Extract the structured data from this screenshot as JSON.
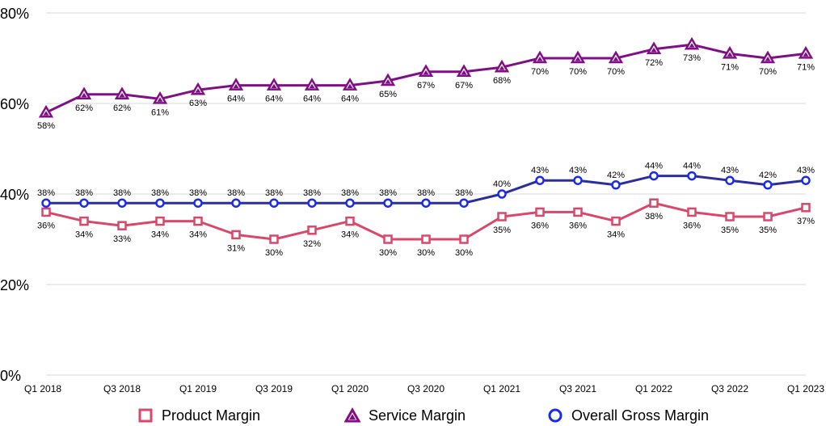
{
  "chart_data": {
    "type": "line",
    "title": "",
    "xlabel": "",
    "ylabel": "",
    "ylim": [
      0,
      80
    ],
    "y_ticks": [
      "0%",
      "20%",
      "40%",
      "60%",
      "80%"
    ],
    "grid": "horizontal",
    "legend_position": "bottom",
    "x": [
      "Q1 2018",
      "Q2 2018",
      "Q3 2018",
      "Q4 2018",
      "Q1 2019",
      "Q2 2019",
      "Q3 2019",
      "Q4 2019",
      "Q1 2020",
      "Q2 2020",
      "Q3 2020",
      "Q4 2020",
      "Q1 2021",
      "Q2 2021",
      "Q3 2021",
      "Q4 2021",
      "Q1 2022",
      "Q2 2022",
      "Q3 2022",
      "Q4 2022",
      "Q1 2023"
    ],
    "x_tick_labels": [
      "Q1 2018",
      "Q3 2018",
      "Q1 2019",
      "Q3 2019",
      "Q1 2020",
      "Q3 2020",
      "Q1 2021",
      "Q3 2021",
      "Q1 2022",
      "Q3 2022",
      "Q1 2023"
    ],
    "series": [
      {
        "name": "Product Margin",
        "color": "#d9486a",
        "marker": "square",
        "values": [
          36,
          34,
          33,
          34,
          34,
          31,
          30,
          32,
          34,
          30,
          30,
          30,
          35,
          36,
          36,
          34,
          38,
          36,
          35,
          35,
          37
        ],
        "labels": [
          "36%",
          "34%",
          "33%",
          "34%",
          "34%",
          "31%",
          "30%",
          "32%",
          "34%",
          "30%",
          "30%",
          "30%",
          "35%",
          "36%",
          "36%",
          "34%",
          "38%",
          "36%",
          "35%",
          "35%",
          "37%"
        ],
        "label_position": "below"
      },
      {
        "name": "Service Margin",
        "color": "#800f86",
        "marker": "triangle",
        "values": [
          58,
          62,
          62,
          61,
          63,
          64,
          64,
          64,
          64,
          65,
          67,
          67,
          68,
          70,
          70,
          70,
          72,
          73,
          71,
          70,
          71
        ],
        "labels": [
          "58%",
          "62%",
          "62%",
          "61%",
          "63%",
          "64%",
          "64%",
          "64%",
          "64%",
          "65%",
          "67%",
          "67%",
          "68%",
          "70%",
          "70%",
          "70%",
          "72%",
          "73%",
          "71%",
          "70%",
          "71%"
        ],
        "label_position": "below"
      },
      {
        "name": "Overall Gross Margin",
        "color": "#2b2f9c",
        "marker_color": "#1a2bf0",
        "marker": "circle",
        "values": [
          38,
          38,
          38,
          38,
          38,
          38,
          38,
          38,
          38,
          38,
          38,
          38,
          40,
          43,
          43,
          42,
          44,
          44,
          43,
          42,
          43
        ],
        "labels": [
          "38%",
          "38%",
          "38%",
          "38%",
          "38%",
          "38%",
          "38%",
          "38%",
          "38%",
          "38%",
          "38%",
          "38%",
          "40%",
          "43%",
          "43%",
          "42%",
          "44%",
          "44%",
          "43%",
          "42%",
          "43%"
        ],
        "label_position": "above"
      }
    ]
  }
}
